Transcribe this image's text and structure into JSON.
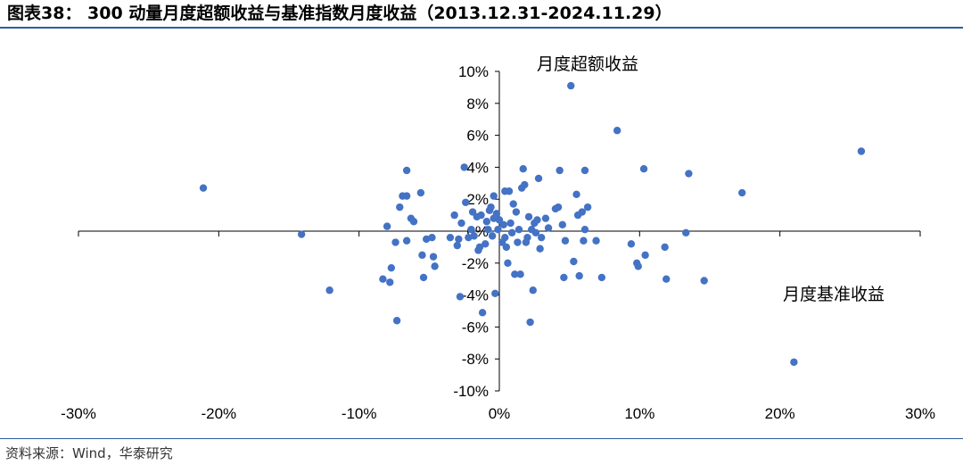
{
  "title": "图表38：  300 动量月度超额收益与基准指数月度收益（2013.12.31-2024.11.29）",
  "source": "资料来源：Wind，华泰研究",
  "chart_data": {
    "type": "scatter",
    "title": "图表38：  300 动量月度超额收益与基准指数月度收益（2013.12.31-2024.11.29）",
    "xlabel": "",
    "ylabel": "",
    "xlim": [
      -0.3,
      0.3
    ],
    "ylim": [
      -0.1,
      0.1
    ],
    "x_ticks": [
      -0.3,
      -0.2,
      -0.1,
      0.0,
      0.1,
      0.2,
      0.3
    ],
    "x_tick_labels": [
      "-30%",
      "-20%",
      "-10%",
      "0%",
      "10%",
      "20%",
      "30%"
    ],
    "y_ticks": [
      0.1,
      0.08,
      0.06,
      0.04,
      0.02,
      0.0,
      -0.02,
      -0.04,
      -0.06,
      -0.08,
      -0.1
    ],
    "y_tick_labels": [
      "10%",
      "8%",
      "6%",
      "4%",
      "2%",
      "0%",
      "-2%",
      "-4%",
      "-6%",
      "-8%",
      "-10%"
    ],
    "grid": false,
    "legend": "none",
    "marker_color": "#4472c4",
    "annotations": [
      {
        "text": "月度超额收益"
      },
      {
        "text": "月度基准收益"
      }
    ],
    "points": [
      [
        -0.211,
        0.027
      ],
      [
        -0.141,
        -0.002
      ],
      [
        -0.121,
        -0.037
      ],
      [
        -0.083,
        -0.03
      ],
      [
        -0.078,
        -0.032
      ],
      [
        -0.077,
        -0.023
      ],
      [
        -0.074,
        -0.007
      ],
      [
        -0.073,
        -0.056
      ],
      [
        -0.08,
        0.003
      ],
      [
        -0.071,
        0.015
      ],
      [
        -0.069,
        0.022
      ],
      [
        -0.066,
        0.022
      ],
      [
        -0.066,
        0.038
      ],
      [
        -0.066,
        -0.006
      ],
      [
        -0.063,
        0.008
      ],
      [
        -0.061,
        0.006
      ],
      [
        -0.056,
        0.024
      ],
      [
        -0.055,
        -0.015
      ],
      [
        -0.054,
        -0.029
      ],
      [
        -0.052,
        -0.005
      ],
      [
        -0.048,
        -0.004
      ],
      [
        -0.047,
        -0.016
      ],
      [
        -0.046,
        -0.022
      ],
      [
        -0.035,
        -0.004
      ],
      [
        -0.032,
        0.01
      ],
      [
        -0.03,
        -0.009
      ],
      [
        -0.029,
        -0.005
      ],
      [
        -0.028,
        -0.041
      ],
      [
        -0.027,
        0.005
      ],
      [
        -0.025,
        0.04
      ],
      [
        -0.024,
        0.018
      ],
      [
        -0.022,
        -0.004
      ],
      [
        -0.02,
        0.001
      ],
      [
        -0.019,
        0.012
      ],
      [
        -0.018,
        -0.003
      ],
      [
        -0.016,
        0.009
      ],
      [
        -0.015,
        -0.012
      ],
      [
        -0.014,
        -0.01
      ],
      [
        -0.013,
        0.01
      ],
      [
        -0.012,
        -0.051
      ],
      [
        -0.01,
        -0.008
      ],
      [
        -0.009,
        0.006
      ],
      [
        -0.008,
        0.001
      ],
      [
        -0.007,
        0.013
      ],
      [
        -0.006,
        0.015
      ],
      [
        -0.005,
        -0.003
      ],
      [
        -0.004,
        0.008
      ],
      [
        -0.004,
        0.022
      ],
      [
        -0.003,
        -0.039
      ],
      [
        -0.002,
        0.011
      ],
      [
        -0.001,
        0.001
      ],
      [
        0.0,
        0.007
      ],
      [
        0.002,
        -0.007
      ],
      [
        0.003,
        0.004
      ],
      [
        0.004,
        -0.004
      ],
      [
        0.004,
        0.025
      ],
      [
        0.005,
        -0.01
      ],
      [
        0.006,
        -0.02
      ],
      [
        0.007,
        0.025
      ],
      [
        0.008,
        0.005
      ],
      [
        0.009,
        -0.001
      ],
      [
        0.01,
        0.017
      ],
      [
        0.011,
        -0.027
      ],
      [
        0.012,
        0.012
      ],
      [
        0.013,
        -0.007
      ],
      [
        0.014,
        0.001
      ],
      [
        0.015,
        -0.027
      ],
      [
        0.016,
        0.027
      ],
      [
        0.017,
        0.039
      ],
      [
        0.018,
        0.029
      ],
      [
        0.019,
        -0.007
      ],
      [
        0.02,
        -0.004
      ],
      [
        0.021,
        0.009
      ],
      [
        0.022,
        -0.057
      ],
      [
        0.023,
        0.001
      ],
      [
        0.024,
        -0.037
      ],
      [
        0.025,
        0.005
      ],
      [
        0.026,
        -0.001
      ],
      [
        0.027,
        0.007
      ],
      [
        0.028,
        0.033
      ],
      [
        0.029,
        -0.011
      ],
      [
        0.03,
        -0.004
      ],
      [
        0.033,
        0.008
      ],
      [
        0.035,
        0.002
      ],
      [
        0.04,
        0.014
      ],
      [
        0.042,
        0.015
      ],
      [
        0.043,
        0.038
      ],
      [
        0.045,
        0.004
      ],
      [
        0.046,
        -0.029
      ],
      [
        0.047,
        -0.006
      ],
      [
        0.051,
        0.091
      ],
      [
        0.053,
        -0.019
      ],
      [
        0.055,
        0.023
      ],
      [
        0.056,
        0.01
      ],
      [
        0.057,
        -0.028
      ],
      [
        0.059,
        0.012
      ],
      [
        0.06,
        -0.006
      ],
      [
        0.061,
        0.001
      ],
      [
        0.061,
        0.038
      ],
      [
        0.063,
        0.015
      ],
      [
        0.069,
        -0.006
      ],
      [
        0.073,
        -0.029
      ],
      [
        0.084,
        0.063
      ],
      [
        0.094,
        -0.008
      ],
      [
        0.098,
        -0.02
      ],
      [
        0.099,
        -0.022
      ],
      [
        0.103,
        0.039
      ],
      [
        0.104,
        -0.015
      ],
      [
        0.118,
        -0.01
      ],
      [
        0.119,
        -0.03
      ],
      [
        0.133,
        -0.001
      ],
      [
        0.135,
        0.036
      ],
      [
        0.146,
        -0.031
      ],
      [
        0.173,
        0.024
      ],
      [
        0.21,
        -0.082
      ],
      [
        0.258,
        0.05
      ]
    ]
  }
}
